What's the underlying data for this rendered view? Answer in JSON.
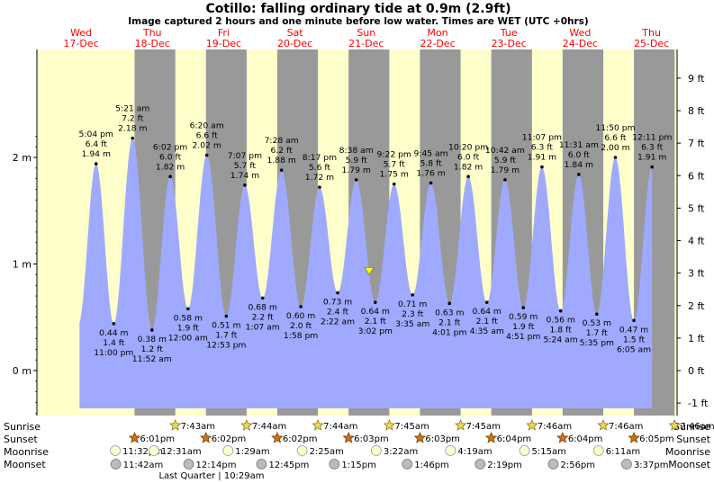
{
  "title": "Cotillo: falling  ordinary tide at 0.9m (2.9ft)",
  "subtitle": "Image captured 2 hours and one minute before low water. Times are WET (UTC +0hrs)",
  "days": [
    {
      "dow": "Wed",
      "date": "17-Dec"
    },
    {
      "dow": "Thu",
      "date": "18-Dec"
    },
    {
      "dow": "Fri",
      "date": "19-Dec"
    },
    {
      "dow": "Sat",
      "date": "20-Dec"
    },
    {
      "dow": "Sun",
      "date": "21-Dec"
    },
    {
      "dow": "Mon",
      "date": "22-Dec"
    },
    {
      "dow": "Tue",
      "date": "23-Dec"
    },
    {
      "dow": "Wed",
      "date": "24-Dec"
    },
    {
      "dow": "Thu",
      "date": "25-Dec"
    }
  ],
  "colors": {
    "day_bg": "#ffffcc",
    "night_bg": "#999999",
    "tide_fill": "#9faaff",
    "date_text": "#ff0000",
    "current_marker": "#ffff00"
  },
  "chart_data": {
    "type": "area",
    "y_axis_left": {
      "unit": "m",
      "ticks": [
        {
          "v": 0,
          "label": "0 m"
        },
        {
          "v": 1,
          "label": "1 m"
        },
        {
          "v": 2,
          "label": "2 m"
        }
      ],
      "ylim": [
        -0.55,
        2.42
      ]
    },
    "y_axis_right": {
      "unit": "ft",
      "ticks": [
        "-1 ft",
        "0 ft",
        "1 ft",
        "2 ft",
        "3 ft",
        "4 ft",
        "5 ft",
        "6 ft",
        "7 ft",
        "8 ft",
        "9 ft"
      ]
    },
    "x_range_hours": [
      -0.5,
      190
    ],
    "night_intervals_hours": [
      [
        18.02,
        31.72
      ],
      [
        42.03,
        55.73
      ],
      [
        66.03,
        79.73
      ],
      [
        90.05,
        103.75
      ],
      [
        114.05,
        127.75
      ],
      [
        138.07,
        151.77
      ],
      [
        162.07,
        175.77
      ],
      [
        186.08,
        199.77
      ]
    ],
    "tide_extremes": [
      {
        "type": "high",
        "t": 5.07,
        "height_m": 1.94,
        "height_ft": "6.4 ft",
        "height_label": "1.94 m",
        "time": "5:04 pm"
      },
      {
        "type": "low",
        "t": 11.0,
        "height_m": 0.44,
        "height_ft": "1.4 ft",
        "height_label": "0.44 m",
        "time": "11:00 pm"
      },
      {
        "type": "high",
        "t": 17.35,
        "height_m": 2.18,
        "height_ft": "7.2 ft",
        "height_label": "2.18 m",
        "time": "5:21 am"
      },
      {
        "type": "low",
        "t": 23.87,
        "height_m": 0.38,
        "height_ft": "1.2 ft",
        "height_label": "0.38 m",
        "time": "11:52 am"
      },
      {
        "type": "high",
        "t": 30.03,
        "height_m": 1.82,
        "height_ft": "6.0 ft",
        "height_label": "1.82 m",
        "time": "6:02 pm"
      },
      {
        "type": "low",
        "t": 36.0,
        "height_m": 0.58,
        "height_ft": "1.9 ft",
        "height_label": "0.58 m",
        "time": "12:00 am"
      },
      {
        "type": "high",
        "t": 42.33,
        "height_m": 2.02,
        "height_ft": "6.6 ft",
        "height_label": "2.02 m",
        "time": "6:20 am"
      },
      {
        "type": "low",
        "t": 48.88,
        "height_m": 0.51,
        "height_ft": "1.7 ft",
        "height_label": "0.51 m",
        "time": "12:53 pm"
      },
      {
        "type": "high",
        "t": 55.12,
        "height_m": 1.74,
        "height_ft": "5.7 ft",
        "height_label": "1.74 m",
        "time": "7:07 pm"
      },
      {
        "type": "low",
        "t": 61.12,
        "height_m": 0.68,
        "height_ft": "2.2 ft",
        "height_label": "0.68 m",
        "time": "1:07 am"
      },
      {
        "type": "high",
        "t": 67.47,
        "height_m": 1.88,
        "height_ft": "6.2 ft",
        "height_label": "1.88 m",
        "time": "7:28 am"
      },
      {
        "type": "low",
        "t": 73.97,
        "height_m": 0.6,
        "height_ft": "2.0 ft",
        "height_label": "0.60 m",
        "time": "1:58 pm"
      },
      {
        "type": "high",
        "t": 80.28,
        "height_m": 1.72,
        "height_ft": "5.6 ft",
        "height_label": "1.72 m",
        "time": "8:17 pm"
      },
      {
        "type": "low",
        "t": 86.37,
        "height_m": 0.73,
        "height_ft": "2.4 ft",
        "height_label": "0.73 m",
        "time": "2:22 am"
      },
      {
        "type": "high",
        "t": 92.63,
        "height_m": 1.79,
        "height_ft": "5.9 ft",
        "height_label": "1.79 m",
        "time": "8:38 am"
      },
      {
        "type": "low",
        "t": 99.03,
        "height_m": 0.64,
        "height_ft": "2.1 ft",
        "height_label": "0.64 m",
        "time": "3:02 pm"
      },
      {
        "type": "high",
        "t": 105.37,
        "height_m": 1.75,
        "height_ft": "5.7 ft",
        "height_label": "1.75 m",
        "time": "9:22 pm"
      },
      {
        "type": "low",
        "t": 111.58,
        "height_m": 0.71,
        "height_ft": "2.3 ft",
        "height_label": "0.71 m",
        "time": "3:35 am"
      },
      {
        "type": "high",
        "t": 117.75,
        "height_m": 1.76,
        "height_ft": "5.8 ft",
        "height_label": "1.76 m",
        "time": "9:45 am"
      },
      {
        "type": "low",
        "t": 124.02,
        "height_m": 0.63,
        "height_ft": "2.1 ft",
        "height_label": "0.63 m",
        "time": "4:01 pm"
      },
      {
        "type": "high",
        "t": 130.33,
        "height_m": 1.82,
        "height_ft": "6.0 ft",
        "height_label": "1.82 m",
        "time": "10:20 pm"
      },
      {
        "type": "low",
        "t": 136.58,
        "height_m": 0.64,
        "height_ft": "2.1 ft",
        "height_label": "0.64 m",
        "time": "4:35 am"
      },
      {
        "type": "high",
        "t": 142.7,
        "height_m": 1.79,
        "height_ft": "5.9 ft",
        "height_label": "1.79 m",
        "time": "10:42 am"
      },
      {
        "type": "low",
        "t": 148.85,
        "height_m": 0.59,
        "height_ft": "1.9 ft",
        "height_label": "0.59 m",
        "time": "4:51 pm"
      },
      {
        "type": "high",
        "t": 155.12,
        "height_m": 1.91,
        "height_ft": "6.3 ft",
        "height_label": "1.91 m",
        "time": "11:07 pm"
      },
      {
        "type": "low",
        "t": 161.4,
        "height_m": 0.56,
        "height_ft": "1.8 ft",
        "height_label": "0.56 m",
        "time": "5:24 am"
      },
      {
        "type": "high",
        "t": 167.52,
        "height_m": 1.84,
        "height_ft": "6.0 ft",
        "height_label": "1.84 m",
        "time": "11:31 am"
      },
      {
        "type": "low",
        "t": 173.58,
        "height_m": 0.53,
        "height_ft": "1.7 ft",
        "height_label": "0.53 m",
        "time": "5:35 pm"
      },
      {
        "type": "high",
        "t": 179.83,
        "height_m": 2.0,
        "height_ft": "6.6 ft",
        "height_label": "2.00 m",
        "time": "11:50 pm"
      },
      {
        "type": "low",
        "t": 186.08,
        "height_m": 0.47,
        "height_ft": "1.5 ft",
        "height_label": "0.47 m",
        "time": "6:05 am"
      },
      {
        "type": "high",
        "t": 192.18,
        "height_m": 1.91,
        "height_ft": "6.3 ft",
        "height_label": "1.91 m",
        "time": "12:11 pm"
      }
    ],
    "current": {
      "t": 97.0,
      "height_m": 0.9
    }
  },
  "legend_labels": {
    "sunrise": "Sunrise",
    "sunset": "Sunset",
    "moonrise": "Moonrise",
    "moonset": "Moonset"
  },
  "sunrise_times": [
    {
      "t": 31.72,
      "label": "7:43am"
    },
    {
      "t": 55.73,
      "label": "7:44am"
    },
    {
      "t": 79.73,
      "label": "7:44am"
    },
    {
      "t": 103.75,
      "label": "7:45am"
    },
    {
      "t": 127.75,
      "label": "7:45am"
    },
    {
      "t": 151.77,
      "label": "7:46am"
    },
    {
      "t": 175.77,
      "label": "7:46am"
    },
    {
      "t": 199.77,
      "label": "7:46am"
    }
  ],
  "sunset_times": [
    {
      "t": 18.02,
      "label": "6:01pm"
    },
    {
      "t": 42.03,
      "label": "6:02pm"
    },
    {
      "t": 66.03,
      "label": "6:02pm"
    },
    {
      "t": 90.05,
      "label": "6:03pm"
    },
    {
      "t": 114.05,
      "label": "6:03pm"
    },
    {
      "t": 138.07,
      "label": "6:04pm"
    },
    {
      "t": 162.07,
      "label": "6:04pm"
    },
    {
      "t": 186.08,
      "label": "6:05pm"
    }
  ],
  "moonrise_times": [
    {
      "t": 11.53,
      "label": "11:32pm"
    },
    {
      "t": 24.52,
      "label": "12:31am"
    },
    {
      "t": 49.48,
      "label": "1:29am"
    },
    {
      "t": 74.42,
      "label": "2:25am"
    },
    {
      "t": 99.37,
      "label": "3:22am"
    },
    {
      "t": 124.32,
      "label": "4:19am"
    },
    {
      "t": 149.25,
      "label": "5:15am"
    },
    {
      "t": 174.18,
      "label": "6:11am"
    }
  ],
  "moonset_times": [
    {
      "t": 11.7,
      "label": "11:42am"
    },
    {
      "t": 36.23,
      "label": "12:14pm"
    },
    {
      "t": 60.75,
      "label": "12:45pm"
    },
    {
      "t": 85.25,
      "label": "1:15pm"
    },
    {
      "t": 109.77,
      "label": "1:46pm"
    },
    {
      "t": 134.32,
      "label": "2:19pm"
    },
    {
      "t": 158.93,
      "label": "2:56pm"
    },
    {
      "t": 183.62,
      "label": "3:37pm"
    }
  ],
  "moon_phase_note": "Last Quarter | 10:29am"
}
